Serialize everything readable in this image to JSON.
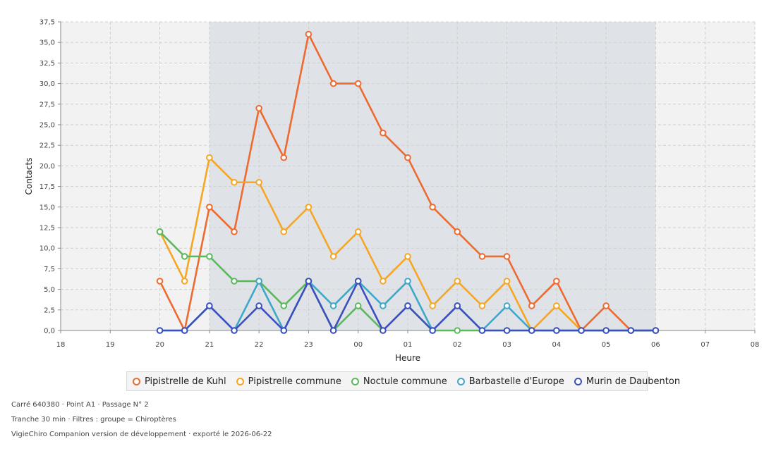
{
  "chart_data": {
    "type": "line",
    "xlabel": "Heure",
    "ylabel": "Contacts",
    "ylim": [
      0,
      37.5
    ],
    "y_ticks": [
      "0,0",
      "2,5",
      "5,0",
      "7,5",
      "10,0",
      "12,5",
      "15,0",
      "17,5",
      "20,0",
      "22,5",
      "25,0",
      "27,5",
      "30,0",
      "32,5",
      "35,0",
      "37,5"
    ],
    "x_range": [
      18,
      32
    ],
    "x_ticks": [
      "18",
      "19",
      "20",
      "21",
      "22",
      "23",
      "00",
      "01",
      "02",
      "03",
      "04",
      "05",
      "06",
      "07",
      "08"
    ],
    "shaded_range": [
      21,
      30
    ],
    "grid": true,
    "legend_position": "bottom",
    "x": [
      20,
      20.5,
      21,
      21.5,
      22,
      22.5,
      23,
      23.5,
      24,
      24.5,
      25,
      25.5,
      26,
      26.5,
      27,
      27.5,
      28,
      28.5,
      29,
      29.5,
      30
    ],
    "series": [
      {
        "name": "Pipistrelle de Kuhl",
        "color": "#ee6a2f",
        "values": [
          6,
          0,
          15,
          12,
          27,
          21,
          36,
          30,
          30,
          24,
          21,
          15,
          12,
          9,
          9,
          3,
          6,
          0,
          3,
          0,
          0
        ]
      },
      {
        "name": "Pipistrelle commune",
        "color": "#f5a623",
        "values": [
          12,
          6,
          21,
          18,
          18,
          12,
          15,
          9,
          12,
          6,
          9,
          3,
          6,
          3,
          6,
          0,
          3,
          0,
          0,
          0,
          0
        ]
      },
      {
        "name": "Noctule commune",
        "color": "#5cb85c",
        "values": [
          12,
          9,
          9,
          6,
          6,
          3,
          6,
          0,
          3,
          0,
          3,
          0,
          0,
          0,
          0,
          0,
          0,
          0,
          0,
          0,
          0
        ]
      },
      {
        "name": "Barbastelle d'Europe",
        "color": "#3ea8c8",
        "values": [
          0,
          0,
          3,
          0,
          6,
          0,
          6,
          3,
          6,
          3,
          6,
          0,
          3,
          0,
          3,
          0,
          0,
          0,
          0,
          0,
          0
        ]
      },
      {
        "name": "Murin de Daubenton",
        "color": "#3c4fbf",
        "values": [
          0,
          0,
          3,
          0,
          3,
          0,
          6,
          0,
          6,
          0,
          3,
          0,
          3,
          0,
          0,
          0,
          0,
          0,
          0,
          0,
          0
        ]
      }
    ]
  },
  "footer": {
    "line1": "Carré 640380 · Point A1 · Passage N° 2",
    "line2": "Tranche 30 min · Filtres : groupe = Chiroptères",
    "line3": "VigieChiro Companion version de développement · exporté le 2026-06-22"
  }
}
